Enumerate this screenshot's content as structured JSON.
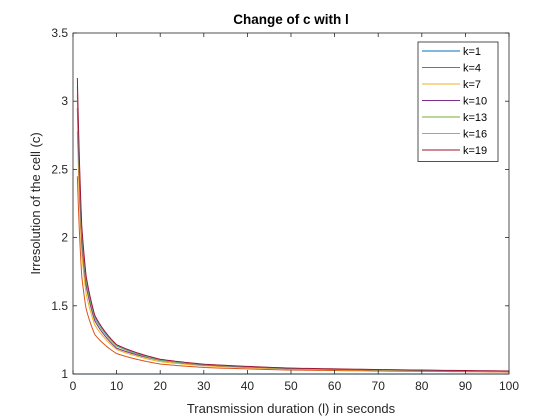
{
  "chart_data": {
    "type": "line",
    "title": "Change of c with l",
    "xlabel": "Transmission duration (l) in seconds",
    "ylabel": "Irresolution of the cell (c)",
    "xlim": [
      0,
      100
    ],
    "ylim": [
      1,
      3.5
    ],
    "xticks": [
      "0",
      "10",
      "20",
      "30",
      "40",
      "50",
      "60",
      "70",
      "80",
      "90",
      "100"
    ],
    "yticks": [
      "1",
      "1.5",
      "2",
      "2.5",
      "3",
      "3.5"
    ],
    "grid": false,
    "legend_position": "top-right",
    "x": [
      1,
      2,
      3,
      5,
      10,
      20,
      30,
      50,
      100
    ],
    "series": [
      {
        "name": "k=1",
        "color": "#0072BD",
        "values": [
          1.0,
          1.0,
          1.0,
          1.0,
          1.0,
          1.0,
          1.0,
          1.0,
          1.0
        ]
      },
      {
        "name": "k=4",
        "color": "#D95319",
        "values": [
          2.45,
          1.72,
          1.48,
          1.29,
          1.15,
          1.073,
          1.048,
          1.029,
          1.015
        ]
      },
      {
        "name": "k=7",
        "color": "#EDB120",
        "values": [
          2.78,
          1.89,
          1.59,
          1.36,
          1.18,
          1.09,
          1.06,
          1.036,
          1.018
        ]
      },
      {
        "name": "k=10",
        "color": "#7E2F8E",
        "values": [
          2.95,
          1.98,
          1.65,
          1.39,
          1.19,
          1.1,
          1.066,
          1.04,
          1.02
        ]
      },
      {
        "name": "k=13",
        "color": "#77AC30",
        "values": [
          3.05,
          2.03,
          1.68,
          1.41,
          1.205,
          1.1,
          1.068,
          1.041,
          1.02
        ]
      },
      {
        "name": "k=16",
        "color": "#4DBEEE",
        "values": [
          3.11,
          2.06,
          1.71,
          1.42,
          1.21,
          1.105,
          1.07,
          1.042,
          1.021
        ]
      },
      {
        "name": "k=19",
        "color": "#A2142F",
        "values": [
          3.17,
          2.09,
          1.72,
          1.43,
          1.215,
          1.108,
          1.072,
          1.043,
          1.022
        ]
      }
    ]
  }
}
